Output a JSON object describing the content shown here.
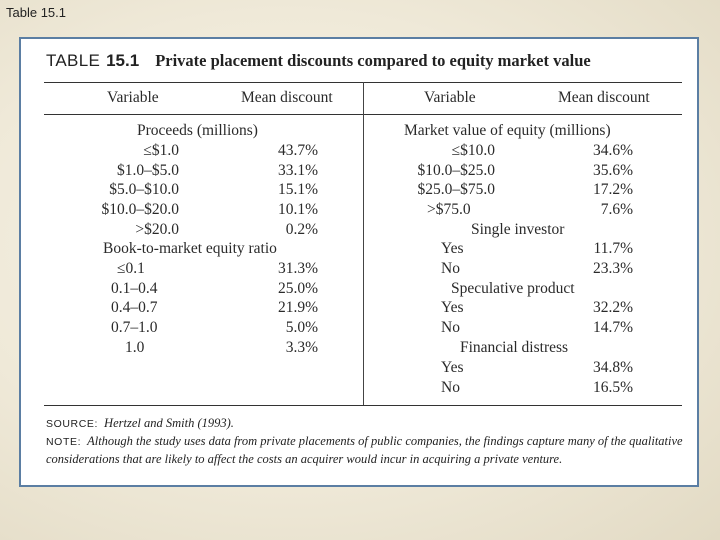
{
  "slide_title": "Table 15.1",
  "table": {
    "label": "TABLE",
    "number": "15.1",
    "caption": "Private placement discounts compared to equity market value",
    "headers": {
      "left_variable": "Variable",
      "left_discount": "Mean discount",
      "right_variable": "Variable",
      "right_discount": "Mean discount"
    },
    "left": {
      "group1": "Proceeds (millions)",
      "rows1": [
        {
          "v": "≤$1.0",
          "d": "43.7%"
        },
        {
          "v": "$1.0–$5.0",
          "d": "33.1%"
        },
        {
          "v": "$5.0–$10.0",
          "d": "15.1%"
        },
        {
          "v": "$10.0–$20.0",
          "d": "10.1%"
        },
        {
          "v": ">$20.0",
          "d": "0.2%"
        }
      ],
      "group2": "Book-to-market equity ratio",
      "rows2": [
        {
          "v": "≤0.1",
          "d": "31.3%"
        },
        {
          "v": "0.1–0.4",
          "d": "25.0%"
        },
        {
          "v": "0.4–0.7",
          "d": "21.9%"
        },
        {
          "v": "0.7–1.0",
          "d": "5.0%"
        },
        {
          "v": "1.0",
          "d": "3.3%"
        }
      ]
    },
    "right": {
      "group1": "Market value of equity (millions)",
      "rows1": [
        {
          "v": "≤$10.0",
          "d": "34.6%"
        },
        {
          "v": "$10.0–$25.0",
          "d": "35.6%"
        },
        {
          "v": "$25.0–$75.0",
          "d": "17.2%"
        },
        {
          "v": ">$75.0",
          "d": "7.6%"
        }
      ],
      "group2": "Single investor",
      "rows2": [
        {
          "v": "Yes",
          "d": "11.7%"
        },
        {
          "v": "No",
          "d": "23.3%"
        }
      ],
      "group3": "Speculative product",
      "rows3": [
        {
          "v": "Yes",
          "d": "32.2%"
        },
        {
          "v": "No",
          "d": "14.7%"
        }
      ],
      "group4": "Financial distress",
      "rows4": [
        {
          "v": "Yes",
          "d": "34.8%"
        },
        {
          "v": "No",
          "d": "16.5%"
        }
      ]
    },
    "source_label": "SOURCE:",
    "source_text": "Hertzel and Smith (1993).",
    "note_label": "NOTE:",
    "note_text": "Although the study uses data from private placements of public companies, the findings capture many of the qualitative considerations that are likely to affect the costs an acquirer would incur in acquiring a private venture."
  }
}
